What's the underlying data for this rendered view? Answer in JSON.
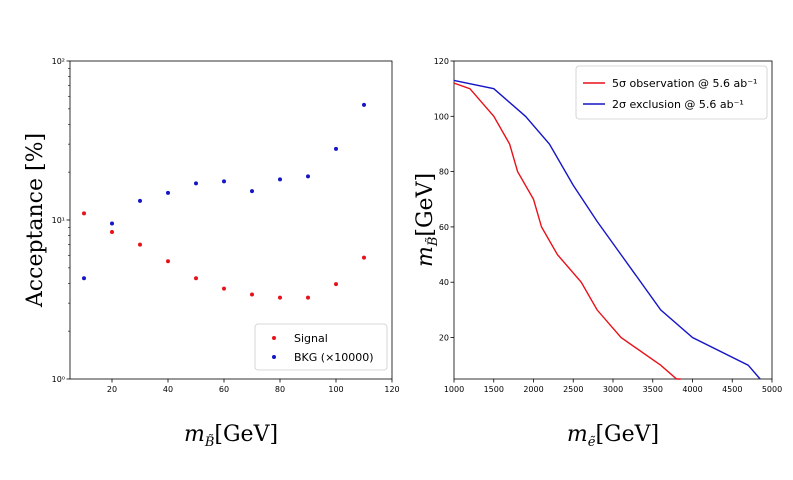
{
  "chart_data": [
    {
      "type": "scatter",
      "title": "",
      "xlabel": "m_B̃[GeV]",
      "xlabel_parts": {
        "base": "m",
        "sub": "B̃",
        "unit": "[GeV]"
      },
      "ylabel": "Acceptance [%]",
      "yscale": "log",
      "xlim": [
        5,
        120
      ],
      "ylim": [
        1,
        100
      ],
      "xticks": [
        20,
        40,
        60,
        80,
        100,
        120
      ],
      "yticks": [
        {
          "value": 1,
          "label": "10⁰"
        },
        {
          "value": 10,
          "label": "10¹"
        },
        {
          "value": 100,
          "label": "10²"
        }
      ],
      "legend_position": "bottom-right",
      "series": [
        {
          "name": "Signal",
          "color": "#e8111a",
          "x": [
            10,
            20,
            30,
            40,
            50,
            60,
            70,
            80,
            90,
            100,
            110
          ],
          "y": [
            11.0,
            8.4,
            7.0,
            5.5,
            4.3,
            3.7,
            3.4,
            3.25,
            3.25,
            3.95,
            5.8
          ]
        },
        {
          "name": "BKG (×10000)",
          "color": "#1515c8",
          "x": [
            10,
            20,
            30,
            40,
            50,
            60,
            70,
            80,
            90,
            100,
            110
          ],
          "y": [
            4.3,
            9.5,
            13.2,
            14.8,
            17.0,
            17.5,
            15.2,
            18.0,
            18.8,
            28.0,
            53.0
          ]
        }
      ]
    },
    {
      "type": "line",
      "title": "",
      "xlabel": "m_ẽ[GeV]",
      "xlabel_parts": {
        "base": "m",
        "sub": "ẽ",
        "unit": "[GeV]"
      },
      "ylabel": "m_B̃[GeV]",
      "ylabel_parts": {
        "base": "m",
        "sub": "B̃",
        "unit": "[GeV]"
      },
      "xlim": [
        1000,
        5000
      ],
      "ylim": [
        5,
        120
      ],
      "xticks": [
        1000,
        1500,
        2000,
        2500,
        3000,
        3500,
        4000,
        4500,
        5000
      ],
      "yticks": [
        20,
        40,
        60,
        80,
        100,
        120
      ],
      "legend_position": "top-right",
      "series": [
        {
          "name": "5σ observation @ 5.6 ab⁻¹",
          "color": "#e8111a",
          "x": [
            1000,
            1200,
            1500,
            1700,
            1800,
            2000,
            2100,
            2300,
            2600,
            2800,
            3100,
            3600,
            3800,
            3850
          ],
          "y": [
            112,
            110,
            100,
            90,
            80,
            70,
            60,
            50,
            40,
            30,
            20,
            10,
            5,
            5
          ]
        },
        {
          "name": "2σ exclusion @ 5.6 ab⁻¹",
          "color": "#1515c8",
          "x": [
            1000,
            1500,
            1900,
            2200,
            2500,
            2800,
            3100,
            3600,
            4000,
            4700,
            4850
          ],
          "y": [
            113,
            110,
            100,
            90,
            75,
            62,
            50,
            30,
            20,
            10,
            5
          ]
        }
      ]
    }
  ]
}
